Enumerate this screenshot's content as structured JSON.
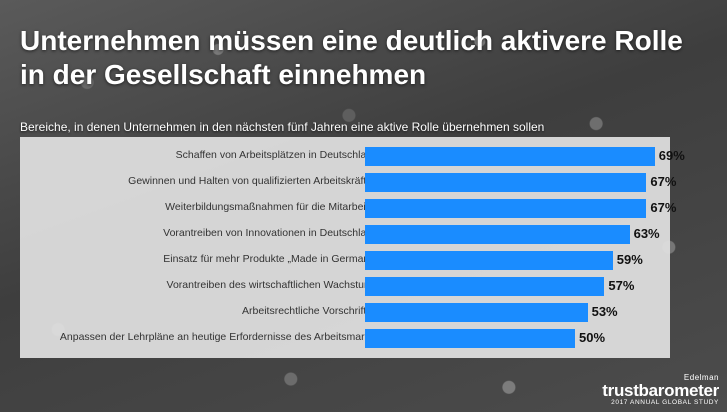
{
  "title": "Unternehmen müssen eine deutlich aktivere Rolle in der Gesellschaft einnehmen",
  "colors": {
    "bar": "#1a8cff",
    "panel": "#e1e1e1"
  },
  "chart_data": {
    "type": "bar",
    "orientation": "horizontal",
    "title": "Bereiche, in denen Unternehmen in den nächsten fünf Jahren eine aktive Rolle übernehmen sollen",
    "categories": [
      "Schaffen von Arbeitsplätzen in Deutschland",
      "Gewinnen und Halten von qualifizierten Arbeitskräften",
      "Weiterbildungsmaßnahmen für die Mitarbeiter",
      "Vorantreiben von Innovationen in Deutschland",
      "Einsatz für mehr Produkte „Made in Germany“",
      "Vorantreiben des wirtschaftlichen Wachstums",
      "Arbeitsrechtliche Vorschriften",
      "Anpassen der Lehrpläne an heutige Erfordernisse des Arbeitsmarkts"
    ],
    "values": [
      69,
      67,
      67,
      63,
      59,
      57,
      53,
      50
    ],
    "value_labels": [
      "69%",
      "67%",
      "67%",
      "63%",
      "59%",
      "57%",
      "53%",
      "50%"
    ],
    "xlim": [
      0,
      100
    ],
    "grid": false,
    "legend": "none"
  },
  "logo": {
    "brand": "Edelman",
    "name": "trustbarometer",
    "sub": "2017 ANNUAL GLOBAL STUDY"
  }
}
